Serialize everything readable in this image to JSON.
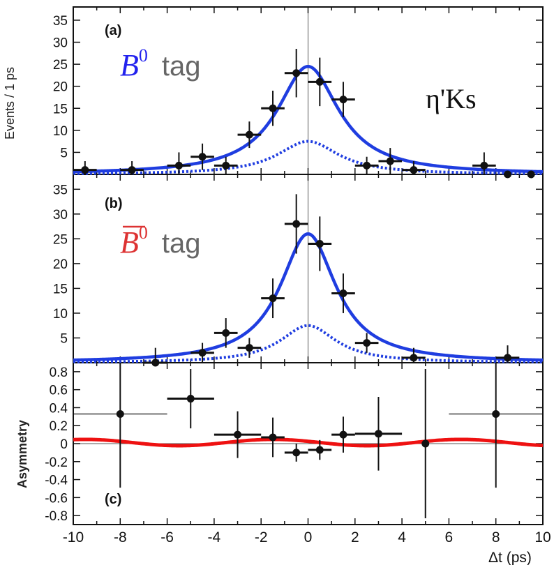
{
  "chart_data": [
    {
      "type": "scatter",
      "panel_label": "(a)",
      "tag_symbol": "B",
      "tag_superscript": "0",
      "tag_text": "tag",
      "tag_color": "#2222ee",
      "annotation": "η'Ks",
      "ylabel": "Events / 1 ps",
      "xlim": [
        -10,
        10
      ],
      "ylim": [
        0,
        38
      ],
      "yticks": [
        "5",
        "10",
        "15",
        "20",
        "25",
        "30",
        "35"
      ],
      "curve_color": "#1f3de0",
      "signal_curve": {
        "peak": 24.5,
        "width": 1.6
      },
      "background_curve": {
        "peak": 7.5,
        "width": 1.6
      },
      "points": [
        {
          "x": -9.5,
          "y": 1,
          "xerr": 0.5,
          "yerr": 2
        },
        {
          "x": -7.5,
          "y": 1,
          "xerr": 0.5,
          "yerr": 2
        },
        {
          "x": -5.5,
          "y": 2,
          "xerr": 0.5,
          "yerr": 3
        },
        {
          "x": -4.5,
          "y": 4,
          "xerr": 0.5,
          "yerr": 3
        },
        {
          "x": -3.5,
          "y": 2,
          "xerr": 0.5,
          "yerr": 2
        },
        {
          "x": -2.5,
          "y": 9,
          "xerr": 0.5,
          "yerr": 3
        },
        {
          "x": -1.5,
          "y": 15,
          "xerr": 0.5,
          "yerr": 4
        },
        {
          "x": -0.5,
          "y": 23,
          "xerr": 0.5,
          "yerr": 5.5
        },
        {
          "x": 0.5,
          "y": 21,
          "xerr": 0.5,
          "yerr": 5.5
        },
        {
          "x": 1.5,
          "y": 17,
          "xerr": 0.5,
          "yerr": 4
        },
        {
          "x": 2.5,
          "y": 2,
          "xerr": 0.5,
          "yerr": 2
        },
        {
          "x": 3.5,
          "y": 3,
          "xerr": 0.5,
          "yerr": 3
        },
        {
          "x": 4.5,
          "y": 1,
          "xerr": 0.5,
          "yerr": 2
        },
        {
          "x": 7.5,
          "y": 2,
          "xerr": 0.5,
          "yerr": 3
        },
        {
          "x": 8.5,
          "y": 0,
          "xerr": 0,
          "yerr": 0
        },
        {
          "x": 9.5,
          "y": 0,
          "xerr": 0,
          "yerr": 0
        }
      ]
    },
    {
      "type": "scatter",
      "panel_label": "(b)",
      "tag_symbol": "B",
      "tag_superscript": "0",
      "tag_text": "tag",
      "tag_color": "#dd3333",
      "xlim": [
        -10,
        10
      ],
      "ylim": [
        0,
        38
      ],
      "yticks": [
        "5",
        "10",
        "15",
        "20",
        "25",
        "30",
        "35"
      ],
      "curve_color": "#1f3de0",
      "signal_curve": {
        "peak": 26,
        "width": 1.45
      },
      "background_curve": {
        "peak": 7.5,
        "width": 1.45
      },
      "points": [
        {
          "x": -6.5,
          "y": 0,
          "xerr": 0.5,
          "yerr": 3
        },
        {
          "x": -4.5,
          "y": 2,
          "xerr": 0.5,
          "yerr": 2
        },
        {
          "x": -3.5,
          "y": 6,
          "xerr": 0.5,
          "yerr": 3
        },
        {
          "x": -2.5,
          "y": 3,
          "xerr": 0.5,
          "yerr": 2
        },
        {
          "x": -1.5,
          "y": 13,
          "xerr": 0.5,
          "yerr": 4
        },
        {
          "x": -0.5,
          "y": 28,
          "xerr": 0.5,
          "yerr": 6
        },
        {
          "x": 0.5,
          "y": 24,
          "xerr": 0.5,
          "yerr": 5.5
        },
        {
          "x": 1.5,
          "y": 14,
          "xerr": 0.5,
          "yerr": 4
        },
        {
          "x": 2.5,
          "y": 4,
          "xerr": 0.5,
          "yerr": 2
        },
        {
          "x": 4.5,
          "y": 1,
          "xerr": 0.5,
          "yerr": 2
        },
        {
          "x": 8.5,
          "y": 1,
          "xerr": 0.5,
          "yerr": 2.5
        }
      ]
    },
    {
      "type": "scatter",
      "panel_label": "(c)",
      "ylabel": "Asymmetry",
      "xlabel": "Δt (ps)",
      "xlim": [
        -10,
        10
      ],
      "ylim": [
        -0.9,
        0.9
      ],
      "yticks": [
        "0.8",
        "0.6",
        "0.4",
        "0.2",
        "0",
        "-0.2",
        "-0.4",
        "-0.6",
        "-0.8"
      ],
      "xticks": [
        "-10",
        "-8",
        "-6",
        "-4",
        "-2",
        "0",
        "2",
        "4",
        "6",
        "8",
        "10"
      ],
      "curve_color": "#ee1111",
      "asym_curve": {
        "amplitude": -0.035,
        "omega": 0.785,
        "offset": 0.012
      },
      "points": [
        {
          "x": -8,
          "y": 0.33,
          "xerr": 2,
          "yerr": 0.82
        },
        {
          "x": -5,
          "y": 0.5,
          "xerr": 1,
          "yerr": 0.33
        },
        {
          "x": -3,
          "y": 0.1,
          "xerr": 1,
          "yerr": 0.26
        },
        {
          "x": -1.5,
          "y": 0.07,
          "xerr": 0.5,
          "yerr": 0.22
        },
        {
          "x": -0.5,
          "y": -0.1,
          "xerr": 0.5,
          "yerr": 0.1
        },
        {
          "x": 0.5,
          "y": -0.07,
          "xerr": 0.5,
          "yerr": 0.11
        },
        {
          "x": 1.5,
          "y": 0.1,
          "xerr": 0.5,
          "yerr": 0.2
        },
        {
          "x": 3,
          "y": 0.11,
          "xerr": 1,
          "yerr": 0.41
        },
        {
          "x": 5,
          "y": 0,
          "xerr": 0,
          "yerr": 0.83
        },
        {
          "x": 8,
          "y": 0.33,
          "xerr": 2,
          "yerr": 0.82
        }
      ]
    }
  ]
}
